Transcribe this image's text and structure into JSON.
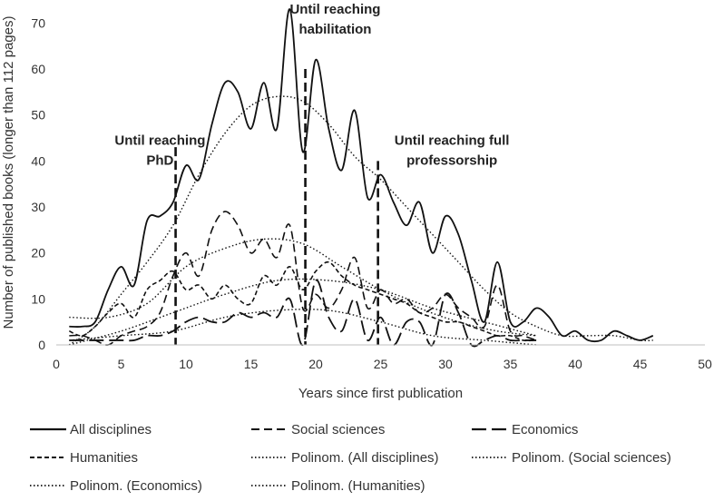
{
  "chart_data": {
    "type": "line",
    "title": "",
    "xlabel": "Years since first publication",
    "ylabel": "Number of published books (longer than 112 pages)",
    "xlim": [
      0,
      50
    ],
    "ylim": [
      0,
      75
    ],
    "x_ticks": [
      "0",
      "5",
      "10",
      "15",
      "20",
      "25",
      "30",
      "35",
      "40",
      "45",
      "50"
    ],
    "y_ticks": [
      "0",
      "10",
      "20",
      "30",
      "40",
      "50",
      "60",
      "70"
    ],
    "grid": false,
    "legend_position": "bottom",
    "series": [
      {
        "name": "All disciplines",
        "style": "solid",
        "x": [
          1,
          2,
          3,
          4,
          5,
          6,
          7,
          8,
          9,
          10,
          11,
          12,
          13,
          14,
          15,
          16,
          17,
          18,
          19,
          20,
          21,
          22,
          23,
          24,
          25,
          26,
          27,
          28,
          29,
          30,
          31,
          32,
          33,
          34,
          35,
          36,
          37,
          38,
          39,
          40,
          41,
          42,
          43,
          44,
          45,
          46
        ],
        "values": [
          4,
          4,
          5,
          12,
          17,
          13,
          27,
          28,
          31,
          39,
          36,
          48,
          57,
          55,
          47,
          57,
          47,
          73,
          42,
          62,
          47,
          38,
          51,
          32,
          37,
          31,
          26,
          31,
          20,
          28,
          24,
          14,
          5,
          18,
          5,
          5,
          8,
          6,
          2,
          3,
          1,
          1,
          3,
          2,
          1,
          2
        ]
      },
      {
        "name": "Social sciences",
        "style": "dash",
        "x": [
          1,
          2,
          3,
          4,
          5,
          6,
          7,
          8,
          9,
          10,
          11,
          12,
          13,
          14,
          15,
          16,
          17,
          18,
          19,
          20,
          21,
          22,
          23,
          24,
          25,
          26,
          27,
          28,
          29,
          30,
          31,
          32,
          33,
          34,
          35,
          36,
          37
        ],
        "values": [
          2,
          2,
          1,
          0,
          2,
          3,
          4,
          7,
          15,
          20,
          15,
          25,
          29,
          26,
          20,
          23,
          19,
          26,
          8,
          11,
          8,
          12,
          19,
          8,
          12,
          9,
          10,
          7,
          8,
          11,
          8,
          6,
          4,
          13,
          3,
          2,
          1
        ]
      },
      {
        "name": "Economics",
        "style": "longdash",
        "x": [
          1,
          2,
          3,
          4,
          5,
          6,
          7,
          8,
          9,
          10,
          11,
          12,
          13,
          14,
          15,
          16,
          17,
          18,
          19,
          20,
          21,
          22,
          23,
          24,
          25,
          26,
          27,
          28,
          29,
          30,
          31,
          32,
          33,
          34,
          35,
          36,
          37
        ],
        "values": [
          1,
          1,
          1,
          1,
          1,
          1,
          2,
          2,
          3,
          5,
          6,
          5,
          5,
          7,
          6,
          7,
          6,
          10,
          0,
          14,
          6,
          3,
          10,
          1,
          6,
          0,
          5,
          5,
          0,
          11,
          7,
          0,
          1,
          2,
          1,
          1,
          1
        ]
      },
      {
        "name": "Humanities",
        "style": "shortdash",
        "x": [
          1,
          2,
          3,
          4,
          5,
          6,
          7,
          8,
          9,
          10,
          11,
          12,
          13,
          14,
          15,
          16,
          17,
          18,
          19,
          20,
          21,
          22,
          23,
          24,
          25,
          26,
          27,
          28,
          29,
          30,
          31,
          32,
          33,
          34,
          35,
          36,
          37
        ],
        "values": [
          3,
          2,
          4,
          7,
          9,
          6,
          12,
          14,
          16,
          12,
          13,
          10,
          13,
          10,
          9,
          15,
          13,
          17,
          12,
          16,
          18,
          15,
          13,
          12,
          11,
          10,
          9,
          7,
          6,
          5,
          5,
          4,
          3,
          2,
          2,
          1,
          1
        ]
      },
      {
        "name": "Polinom. (All disciplines)",
        "style": "dotted",
        "x": [
          1,
          3,
          5,
          7,
          9,
          11,
          13,
          15,
          17,
          19,
          21,
          23,
          25,
          27,
          29,
          31,
          33,
          35,
          37,
          39,
          41,
          43,
          45,
          46
        ],
        "values": [
          0,
          4,
          11,
          18,
          26,
          37,
          46,
          52,
          54,
          53,
          48,
          41,
          36,
          30,
          24,
          18,
          12,
          7,
          4,
          2,
          2,
          2,
          1,
          1
        ]
      },
      {
        "name": "Polinom. (Social sciences)",
        "style": "dotted",
        "x": [
          1,
          4,
          7,
          10,
          13,
          16,
          19,
          22,
          25,
          28,
          31,
          34,
          37
        ],
        "values": [
          6,
          6,
          9,
          17,
          21,
          23,
          22,
          17,
          12,
          8,
          5,
          3,
          2
        ]
      },
      {
        "name": "Polinom. (Economics)",
        "style": "dotted",
        "x": [
          1,
          5,
          9,
          13,
          17,
          21,
          25,
          29,
          33,
          37
        ],
        "values": [
          1,
          2,
          3,
          6,
          7.5,
          7.5,
          5,
          2,
          1,
          0
        ]
      },
      {
        "name": "Polinom. (Humanities)",
        "style": "dotted",
        "x": [
          1,
          5,
          9,
          13,
          17,
          21,
          25,
          29,
          33,
          37
        ],
        "values": [
          0,
          3,
          7,
          11,
          14,
          14,
          12,
          8,
          5,
          2
        ]
      }
    ],
    "vertical_markers": [
      {
        "x": 9.2,
        "y_top": 43
      },
      {
        "x": 19.2,
        "y_top": 60
      },
      {
        "x": 24.8,
        "y_top": 40
      }
    ],
    "annotations": [
      {
        "lines": [
          "Until reaching",
          "PhD"
        ],
        "x": 8,
        "y": 43.5
      },
      {
        "lines": [
          "Until reaching",
          "habilitation"
        ],
        "x": 21.5,
        "y": 72
      },
      {
        "lines": [
          "Until reaching full",
          "professorship"
        ],
        "x": 30.5,
        "y": 43.5
      }
    ]
  }
}
